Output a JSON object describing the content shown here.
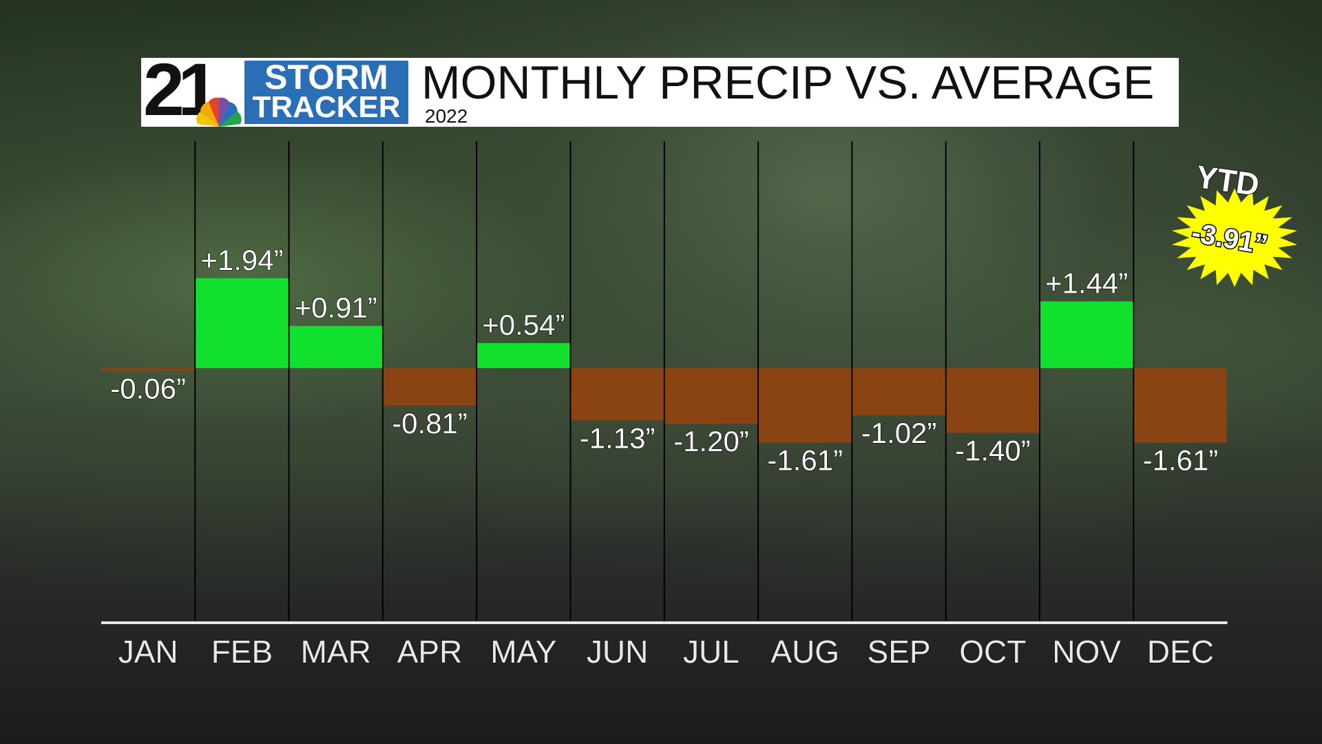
{
  "header": {
    "logo_number": "21",
    "logo_line1": "STORM",
    "logo_line2": "TRACKER",
    "title": "MONTHLY PRECIP VS. AVERAGE",
    "subtitle": "2022"
  },
  "ytd": {
    "label": "YTD",
    "value_text": "-3.91”",
    "value": -3.91
  },
  "colors": {
    "positive": "#12e02f",
    "negative": "#8a4413",
    "divider": "#000000",
    "axis": "#e8e8e8",
    "label_text": "#ffffff",
    "starburst": "#ffff00",
    "logo_blue": "#2a6fb6"
  },
  "chart_data": {
    "type": "bar",
    "title": "MONTHLY PRECIP VS. AVERAGE",
    "subtitle": "2022",
    "categories": [
      "JAN",
      "FEB",
      "MAR",
      "APR",
      "MAY",
      "JUN",
      "JUL",
      "AUG",
      "SEP",
      "OCT",
      "NOV",
      "DEC"
    ],
    "values": [
      -0.06,
      1.94,
      0.91,
      -0.81,
      0.54,
      -1.13,
      -1.2,
      -1.61,
      -1.02,
      -1.4,
      1.44,
      -1.61
    ],
    "labels": [
      "-0.06”",
      "+1.94”",
      "+0.91”",
      "-0.81”",
      "+0.54”",
      "-1.13”",
      "-1.20”",
      "-1.61”",
      "-1.02”",
      "-1.40”",
      "+1.44”",
      "-1.61”"
    ],
    "ylim": [
      -5.5,
      4.9
    ],
    "grid": false,
    "legend": "none"
  }
}
